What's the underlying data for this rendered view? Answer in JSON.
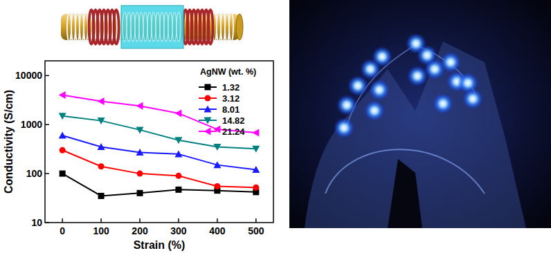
{
  "chart_data": {
    "type": "line",
    "x_label": "Strain (%)",
    "y_label": "Conductivity (S/cm)",
    "legend_title": "AgNW (wt. %)",
    "x": [
      0,
      100,
      200,
      300,
      400,
      500
    ],
    "series": [
      {
        "name": "1.32",
        "color": "#000000",
        "marker": "square",
        "values": [
          100,
          35,
          40,
          47,
          45,
          42
        ]
      },
      {
        "name": "3.12",
        "color": "#ff0000",
        "marker": "circle",
        "values": [
          300,
          140,
          100,
          90,
          55,
          52
        ]
      },
      {
        "name": "8.01",
        "color": "#1a1aff",
        "marker": "triangle-up",
        "values": [
          600,
          350,
          270,
          250,
          150,
          120
        ]
      },
      {
        "name": "14.82",
        "color": "#008080",
        "marker": "triangle-down",
        "values": [
          1500,
          1200,
          780,
          480,
          350,
          320
        ]
      },
      {
        "name": "21.24",
        "color": "#ff00ff",
        "marker": "triangle-left",
        "values": [
          4000,
          3000,
          2400,
          1700,
          800,
          680
        ]
      }
    ],
    "xlim": [
      -45,
      545
    ],
    "xticks": [
      0,
      100,
      200,
      300,
      400,
      500
    ],
    "ylim": [
      10,
      20000
    ],
    "yticks": [
      10,
      100,
      1000,
      10000
    ],
    "log": "y",
    "grid": false,
    "legend": "upper right"
  }
}
